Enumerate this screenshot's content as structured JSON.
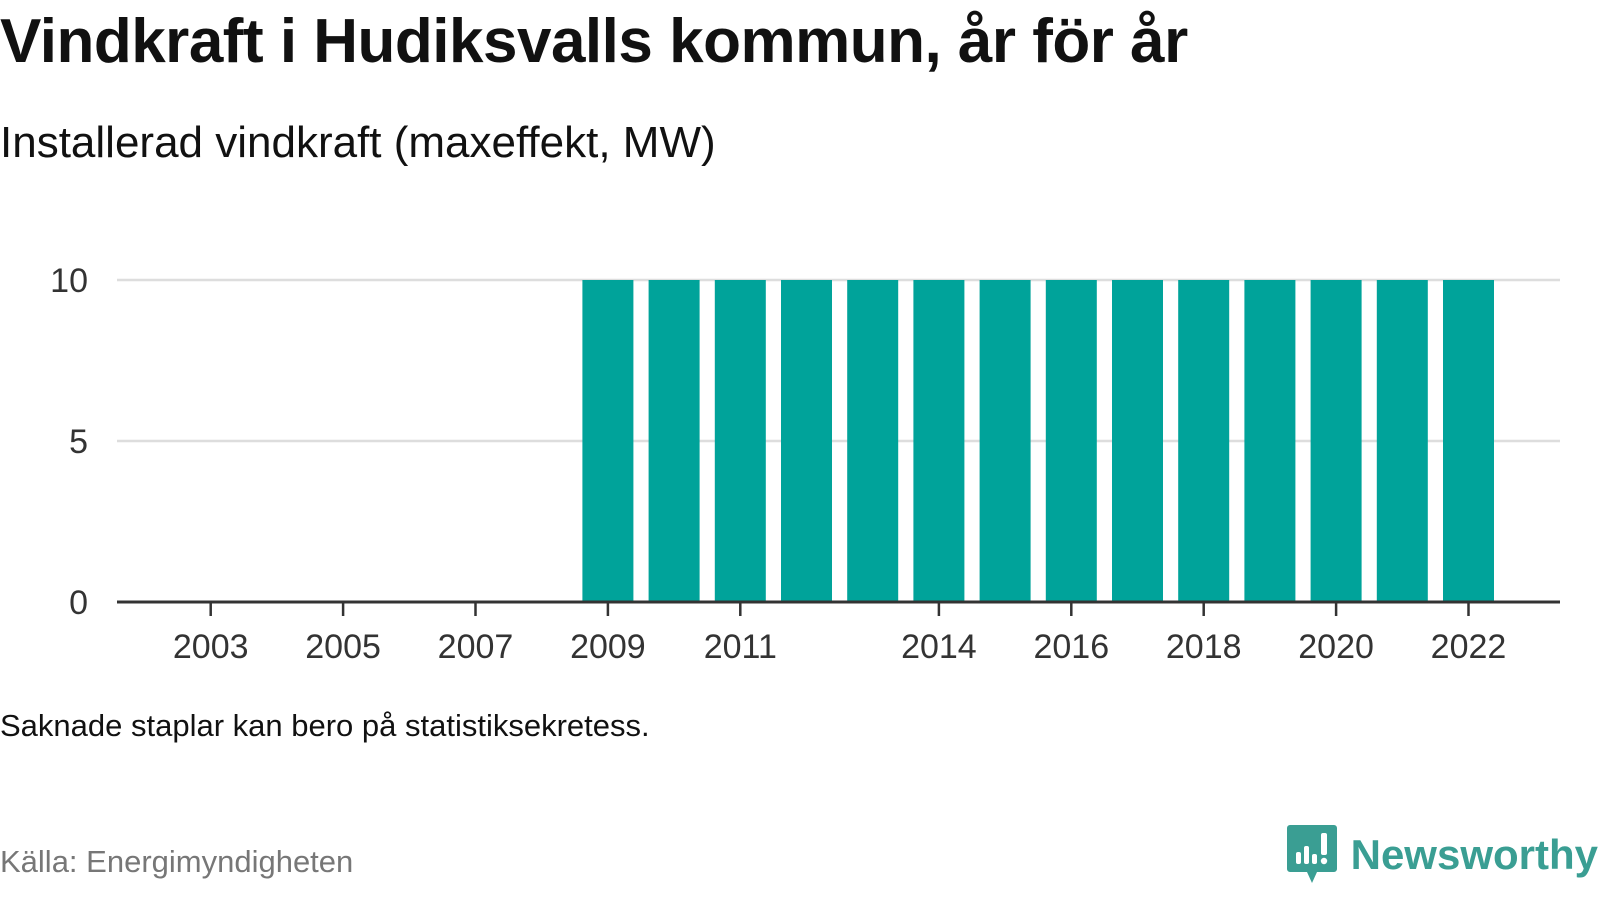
{
  "title": "Vindkraft i Hudiksvalls kommun, år för år",
  "subtitle": "Installerad vindkraft (maxeffekt, MW)",
  "note": "Saknade staplar kan bero på statistiksekretess.",
  "source": "Källa: Energimyndigheten",
  "brand": {
    "name": "Newsworthy",
    "color": "#3a9e93",
    "icon": "newsworthy-logo-icon"
  },
  "chart_data": {
    "type": "bar",
    "categories": [
      "2002",
      "2003",
      "2004",
      "2005",
      "2006",
      "2007",
      "2008",
      "2009",
      "2010",
      "2011",
      "2012",
      "2013",
      "2014",
      "2015",
      "2016",
      "2017",
      "2018",
      "2019",
      "2020",
      "2021",
      "2022"
    ],
    "values": [
      null,
      null,
      null,
      null,
      null,
      null,
      null,
      10,
      10,
      10,
      10,
      10,
      10,
      10,
      10,
      10,
      10,
      10,
      10,
      10,
      10
    ],
    "x_tick_labels": [
      "2003",
      "2005",
      "2007",
      "2009",
      "2011",
      "2014",
      "2016",
      "2018",
      "2020",
      "2022"
    ],
    "y_ticks": [
      0,
      5,
      10
    ],
    "ylim": [
      0,
      10
    ],
    "xlabel": "",
    "ylabel": "",
    "grid": true,
    "bar_color": "#00a39a",
    "grid_color": "#dddddd",
    "axis_color": "#333333"
  }
}
